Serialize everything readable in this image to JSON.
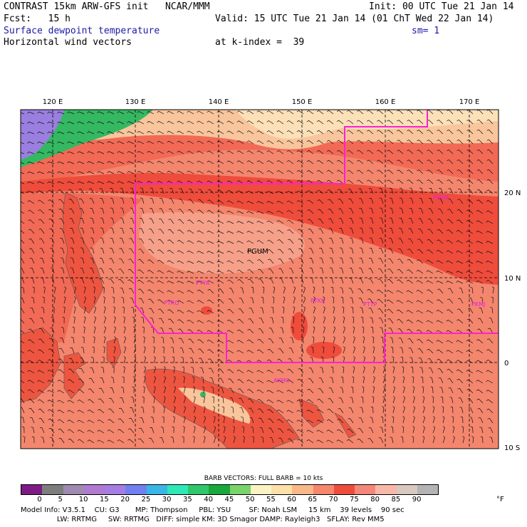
{
  "header": {
    "line1_left": "CONTRAST 15km ARW-GFS init   NCAR/MMM",
    "line1_right": "Init: 00 UTC Tue 21 Jan 14",
    "line2_left": "Fcst:   15 h",
    "line2_right": "Valid: 15 UTC Tue 21 Jan 14 (01 ChT Wed 22 Jan 14)",
    "field_name": "Surface dewpoint temperature",
    "smoothing": "sm= 1",
    "vector_name": "Horizontal wind vectors",
    "level": "at k-index =  39"
  },
  "map": {
    "lon_labels": [
      "120 E",
      "130 E",
      "140 E",
      "150 E",
      "160 E",
      "170 E"
    ],
    "lat_labels": [
      "20 N",
      "10 N",
      "0",
      "10 S"
    ],
    "stations": [
      {
        "name": "PGUM",
        "big": true
      },
      {
        "name": "PTYA"
      },
      {
        "name": "PTRO"
      },
      {
        "name": "PTKK"
      },
      {
        "name": "PTTP"
      },
      {
        "name": "PKMJ"
      },
      {
        "name": "PKWA"
      },
      {
        "name": "AYMO"
      }
    ],
    "colors": {
      "ocean_base": "#f4866e",
      "band_80": "#f6a08a",
      "band_75": "#f26a56",
      "band_70": "#ef4c3c",
      "band_60": "#f9c59c",
      "band_55": "#fbe0b8",
      "land": "#ee5540",
      "high_green": "#35b862",
      "purple": "#9b7fe0",
      "boundary": "#ff1fd6"
    }
  },
  "legend": {
    "barb_title": "BARB VECTORS:  FULL BARB = 10 kts",
    "unit": "°F",
    "levels": [
      "0",
      "5",
      "10",
      "15",
      "20",
      "25",
      "30",
      "35",
      "40",
      "45",
      "50",
      "55",
      "60",
      "65",
      "70",
      "75",
      "80",
      "85",
      "90"
    ],
    "swatches": [
      "#7e1a85",
      "#7d7d7d",
      "#a08ab0",
      "#b07ad0",
      "#a67de4",
      "#7080f0",
      "#39b6e6",
      "#2ee8b8",
      "#2ec86a",
      "#19a83a",
      "#7ad46a",
      "#fbf3c2",
      "#fce0a8",
      "#f9b888",
      "#f6866c",
      "#f04c3c",
      "#f4877a",
      "#f8b8a8",
      "#d8c8be",
      "#b4b4b4"
    ]
  },
  "footer": {
    "line1": "Model Info: V3.5.1    CU: G3       MP: Thompson     PBL: YSU        SF: Noah LSM     15 km    39 levels    90 sec",
    "line2": "                LW: RRTMG     SW: RRTMG   DIFF: simple KM: 3D Smagor DAMP: Rayleigh3   SFLAY: Rev MM5"
  }
}
